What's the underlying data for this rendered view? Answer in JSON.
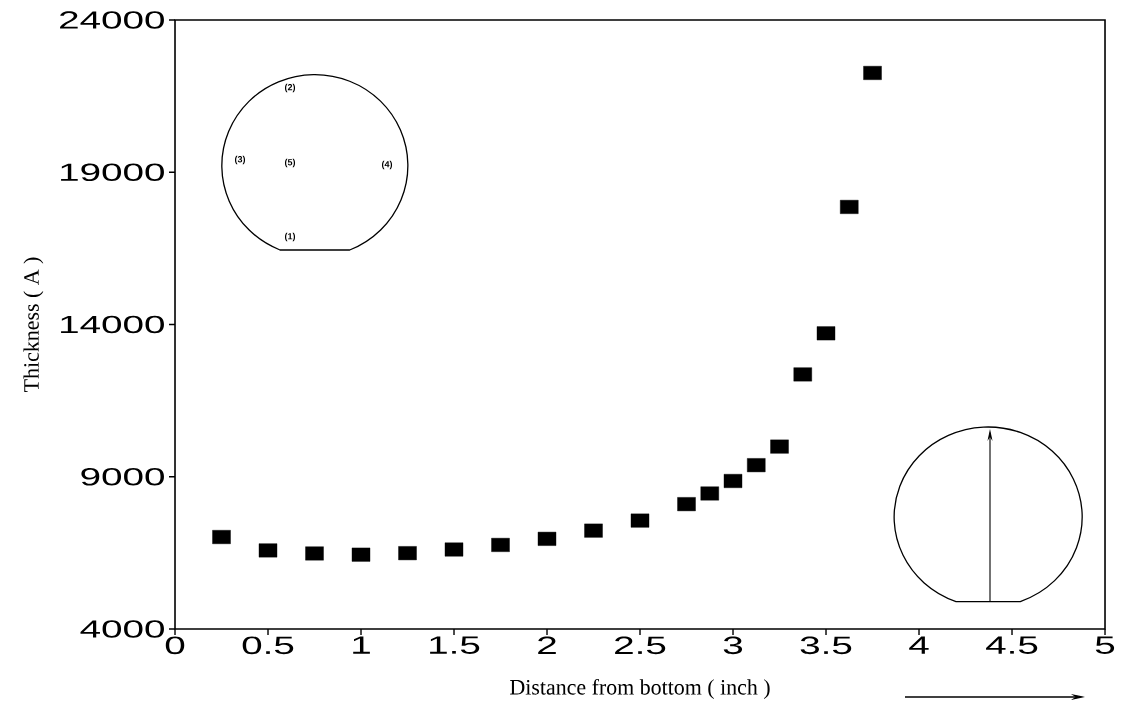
{
  "chart_data": {
    "type": "scatter",
    "xlabel": "Distance from bottom ( inch )",
    "ylabel": "Thickness ( A )",
    "x": [
      0.25,
      0.5,
      0.75,
      1.0,
      1.25,
      1.5,
      1.75,
      2.0,
      2.25,
      2.5,
      2.75,
      2.875,
      3.0,
      3.125,
      3.25,
      3.375,
      3.5,
      3.625,
      3.75
    ],
    "series": [
      {
        "color": "#000000",
        "values": [
          7020,
          6580,
          6480,
          6440,
          6490,
          6610,
          6760,
          6960,
          7230,
          7560,
          8100,
          8450,
          8860,
          9380,
          9990,
          12360,
          13710,
          17860,
          22260
        ]
      }
    ],
    "marker": "square",
    "xlim": [
      0,
      5
    ],
    "ylim": [
      4000,
      24000
    ],
    "xticks": [
      0,
      0.5,
      1,
      1.5,
      2,
      2.5,
      3,
      3.5,
      4,
      4.5,
      5
    ],
    "yticks": [
      4000,
      9000,
      14000,
      19000,
      24000
    ],
    "annotations": [
      "(1)",
      "(2)",
      "(3)",
      "(4)",
      "(5)"
    ]
  }
}
